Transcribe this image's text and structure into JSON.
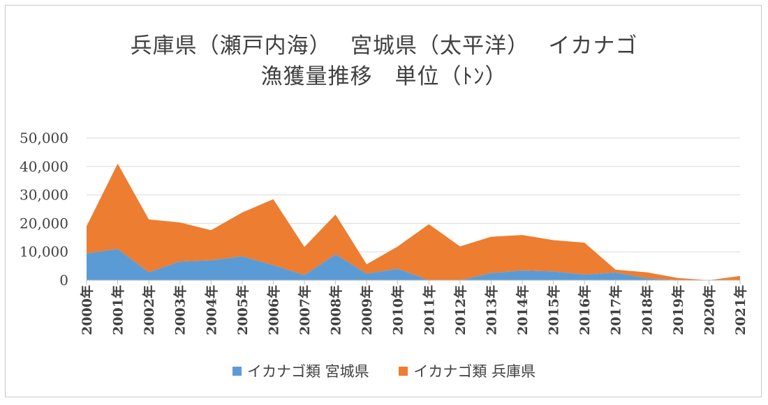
{
  "chart_data": {
    "type": "area",
    "stacked": true,
    "title_lines": [
      "兵庫県（瀬戸内海）　 宮城県（太平洋）　 イカナゴ",
      "漁獲量推移　単位（ﾄﾝ）"
    ],
    "categories": [
      "2000年",
      "2001年",
      "2002年",
      "2003年",
      "2004年",
      "2005年",
      "2006年",
      "2007年",
      "2008年",
      "2009年",
      "2010年",
      "2011年",
      "2012年",
      "2013年",
      "2014年",
      "2015年",
      "2016年",
      "2017年",
      "2018年",
      "2019年",
      "2020年",
      "2021年"
    ],
    "series": [
      {
        "name": "イカナゴ類 宮城県",
        "color": "#5b9bd5",
        "values": [
          9400,
          11000,
          2800,
          6600,
          7000,
          8400,
          5300,
          1800,
          9100,
          2300,
          4000,
          0,
          0,
          2500,
          3400,
          3100,
          2000,
          2700,
          700,
          0,
          0,
          0
        ]
      },
      {
        "name": "イカナゴ類 兵庫県",
        "color": "#ed7d31",
        "values": [
          9600,
          30000,
          18600,
          13700,
          10600,
          15400,
          23200,
          9900,
          14000,
          3300,
          7900,
          19700,
          11900,
          12800,
          12500,
          11000,
          11200,
          1000,
          2100,
          800,
          0,
          1500
        ]
      }
    ],
    "ylim": [
      0,
      50000
    ],
    "yticks": [
      "0",
      "10,000",
      "20,000",
      "30,000",
      "40,000",
      "50,000"
    ],
    "ytick_values": [
      0,
      10000,
      20000,
      30000,
      40000,
      50000
    ],
    "grid": true,
    "legend_position": "bottom"
  }
}
